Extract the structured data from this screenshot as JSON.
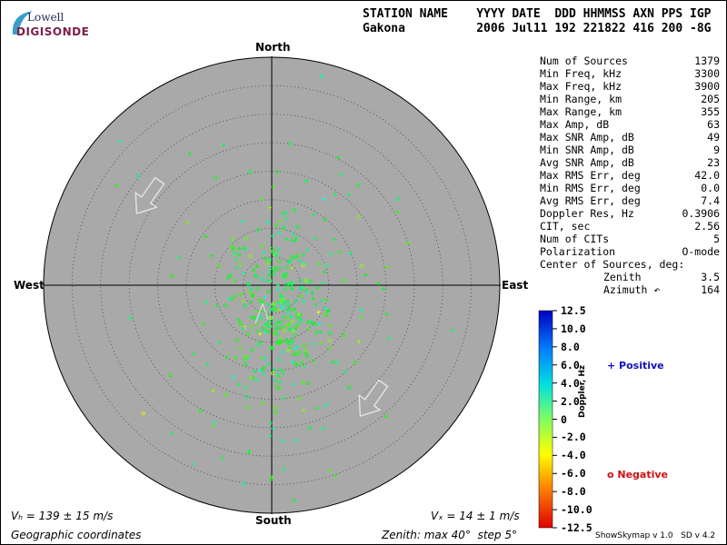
{
  "logo": {
    "top_text": "Lowell",
    "bottom_text": "DIGISONDE"
  },
  "header": {
    "columns": "STATION NAME    YYYY DATE  DDD HHMMSS AXN PPS IGP",
    "values": "Gakona          2006 Jul11 192 221822 416 200 -8G"
  },
  "stats": [
    {
      "label": "Num of Sources",
      "value": "1379"
    },
    {
      "label": "Min Freq, kHz",
      "value": "3300"
    },
    {
      "label": "Max Freq, kHz",
      "value": "3900"
    },
    {
      "label": "Min Range, km",
      "value": "205"
    },
    {
      "label": "Max Range, km",
      "value": "355"
    },
    {
      "label": "Max Amp, dB",
      "value": "63"
    },
    {
      "label": "Max SNR Amp, dB",
      "value": "49"
    },
    {
      "label": "Min SNR Amp, dB",
      "value": "9"
    },
    {
      "label": "Avg SNR Amp, dB",
      "value": "23"
    },
    {
      "label": "Max RMS Err, deg",
      "value": "42.0"
    },
    {
      "label": "Min RMS Err, deg",
      "value": "0.0"
    },
    {
      "label": "Avg RMS Err, deg",
      "value": "7.4"
    },
    {
      "label": "Doppler Res, Hz",
      "value": "0.3906"
    },
    {
      "label": "CIT, sec",
      "value": "2.56"
    },
    {
      "label": "Num of CITs",
      "value": "5"
    },
    {
      "label": "Polarization",
      "value": "O-mode"
    }
  ],
  "center": {
    "title": "Center of Sources, deg:",
    "zenith_label": "Zenith",
    "zenith_value": "3.5",
    "azimuth_label": "Azimuth ↶",
    "azimuth_value": "164"
  },
  "compass": {
    "north": "North",
    "south": "South",
    "east": "East",
    "west": "West"
  },
  "colorbar": {
    "ticks": [
      "12.5",
      "10.0",
      "8.0",
      "6.0",
      "4.0",
      "2.0",
      "0",
      "-2.0",
      "-4.0",
      "-6.0",
      "-8.0",
      "-10.0",
      "-12.5"
    ],
    "label": "Doppler, Hz",
    "positive_label": "+ Positive",
    "negative_label": "o Negative",
    "positive_color": "#1010c0",
    "negative_color": "#d01010"
  },
  "footer": {
    "vh": "Vₕ = 139 ± 15 m/s",
    "vz": "Vₓ = 14 ± 1 m/s",
    "coords": "Geographic coordinates",
    "zenith_info": "Zenith: max 40°  step 5°",
    "version": "ShowSkymap v 1.0   SD v 4.2"
  },
  "chart_data": {
    "type": "scatter",
    "projection": "polar-sky",
    "zenith_max_deg": 40,
    "zenith_step_deg": 5,
    "cluster_center": {
      "zenith_deg": 3.5,
      "azimuth_deg": 164
    },
    "velocity_arrows": [
      {
        "position": "upper-left",
        "direction": "southeast"
      },
      {
        "position": "lower-right",
        "direction": "southwest"
      },
      {
        "position": "center",
        "direction": "northwest"
      }
    ],
    "num_sources": 1379,
    "doppler_range_hz": [
      -12.5,
      12.5
    ],
    "plot_background": "#a9a9a9"
  }
}
